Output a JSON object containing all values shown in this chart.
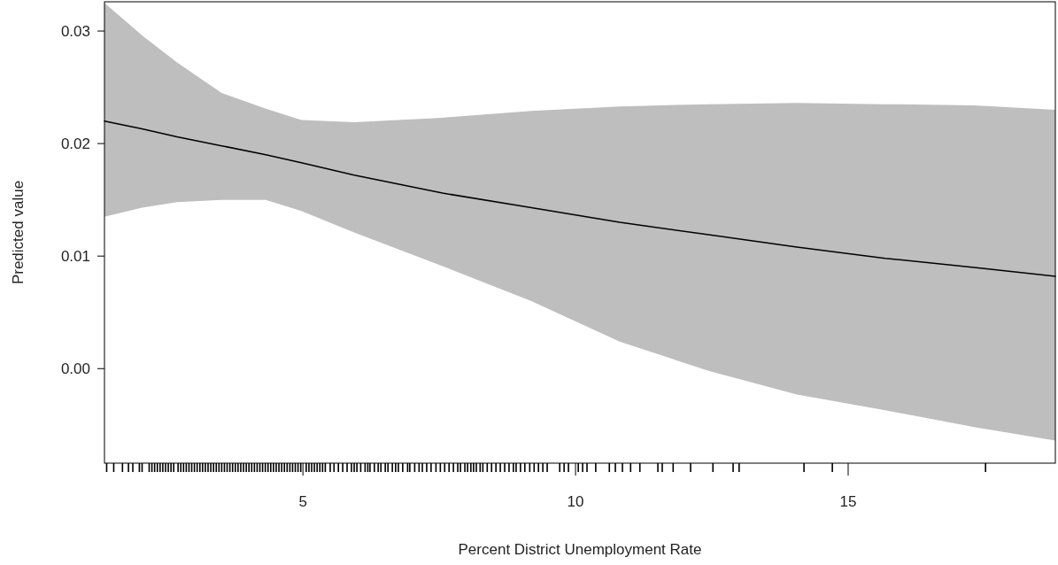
{
  "chart_data": {
    "type": "line",
    "xlabel": "Percent District Unemployment Rate",
    "ylabel": "Predicted value",
    "x": [
      1.36,
      2.05,
      2.69,
      3.51,
      4.32,
      4.97,
      5.94,
      7.56,
      9.19,
      10.81,
      12.44,
      14.06,
      15.68,
      17.31,
      18.8
    ],
    "series": [
      {
        "color": "#000000",
        "values": [
          0.022,
          0.0213,
          0.0206,
          0.0198,
          0.019,
          0.0183,
          0.0172,
          0.0156,
          0.0143,
          0.013,
          0.0119,
          0.0108,
          0.0098,
          0.009,
          0.0082
        ],
        "lower": [
          0.0135,
          0.0143,
          0.0148,
          0.015,
          0.015,
          0.014,
          0.0121,
          0.0091,
          0.006,
          0.0024,
          -0.0002,
          -0.0023,
          -0.0037,
          -0.0052,
          -0.0064
        ],
        "upper": [
          0.0325,
          0.0296,
          0.0272,
          0.0245,
          0.0231,
          0.0221,
          0.0219,
          0.0223,
          0.0229,
          0.0233,
          0.0235,
          0.0236,
          0.0235,
          0.0234,
          0.023
        ]
      }
    ],
    "xlim": [
      1.36,
      18.8
    ],
    "ylim": [
      -0.0084,
      0.0326
    ],
    "yticks": [
      {
        "value": 0,
        "label": "0.00"
      },
      {
        "value": 0.01,
        "label": "0.01"
      },
      {
        "value": 0.02,
        "label": "0.02"
      },
      {
        "value": 0.03,
        "label": "0.03"
      }
    ],
    "xticks": [
      5,
      10,
      15,
      {
        "value": 1.4,
        "label": null
      },
      {
        "value": 1.53,
        "label": null
      },
      {
        "value": 1.69,
        "label": null
      },
      {
        "value": 1.8,
        "label": null
      },
      {
        "value": 1.88,
        "label": null
      },
      {
        "value": 2.0,
        "label": null
      },
      {
        "value": 2.05,
        "label": null
      },
      {
        "value": 2.18,
        "label": null
      },
      {
        "value": 2.23,
        "label": null
      },
      {
        "value": 2.28,
        "label": null
      },
      {
        "value": 2.33,
        "label": null
      },
      {
        "value": 2.38,
        "label": null
      },
      {
        "value": 2.43,
        "label": null
      },
      {
        "value": 2.48,
        "label": null
      },
      {
        "value": 2.53,
        "label": null
      },
      {
        "value": 2.58,
        "label": null
      },
      {
        "value": 2.63,
        "label": null
      },
      {
        "value": 2.71,
        "label": null
      },
      {
        "value": 2.76,
        "label": null
      },
      {
        "value": 2.81,
        "label": null
      },
      {
        "value": 2.86,
        "label": null
      },
      {
        "value": 2.91,
        "label": null
      },
      {
        "value": 2.96,
        "label": null
      },
      {
        "value": 3.01,
        "label": null
      },
      {
        "value": 3.06,
        "label": null
      },
      {
        "value": 3.11,
        "label": null
      },
      {
        "value": 3.16,
        "label": null
      },
      {
        "value": 3.21,
        "label": null
      },
      {
        "value": 3.26,
        "label": null
      },
      {
        "value": 3.31,
        "label": null
      },
      {
        "value": 3.36,
        "label": null
      },
      {
        "value": 3.41,
        "label": null
      },
      {
        "value": 3.46,
        "label": null
      },
      {
        "value": 3.51,
        "label": null
      },
      {
        "value": 3.56,
        "label": null
      },
      {
        "value": 3.61,
        "label": null
      },
      {
        "value": 3.66,
        "label": null
      },
      {
        "value": 3.71,
        "label": null
      },
      {
        "value": 3.76,
        "label": null
      },
      {
        "value": 3.81,
        "label": null
      },
      {
        "value": 3.86,
        "label": null
      },
      {
        "value": 3.91,
        "label": null
      },
      {
        "value": 3.96,
        "label": null
      },
      {
        "value": 4.01,
        "label": null
      },
      {
        "value": 4.06,
        "label": null
      },
      {
        "value": 4.11,
        "label": null
      },
      {
        "value": 4.16,
        "label": null
      },
      {
        "value": 4.21,
        "label": null
      },
      {
        "value": 4.26,
        "label": null
      },
      {
        "value": 4.31,
        "label": null
      },
      {
        "value": 4.36,
        "label": null
      },
      {
        "value": 4.41,
        "label": null
      },
      {
        "value": 4.46,
        "label": null
      },
      {
        "value": 4.51,
        "label": null
      },
      {
        "value": 4.56,
        "label": null
      },
      {
        "value": 4.61,
        "label": null
      },
      {
        "value": 4.66,
        "label": null
      },
      {
        "value": 4.71,
        "label": null
      },
      {
        "value": 4.76,
        "label": null
      },
      {
        "value": 4.81,
        "label": null
      },
      {
        "value": 4.86,
        "label": null
      },
      {
        "value": 4.91,
        "label": null
      },
      {
        "value": 4.96,
        "label": null
      },
      {
        "value": 5.06,
        "label": null
      },
      {
        "value": 5.11,
        "label": null
      },
      {
        "value": 5.16,
        "label": null
      },
      {
        "value": 5.21,
        "label": null
      },
      {
        "value": 5.26,
        "label": null
      },
      {
        "value": 5.31,
        "label": null
      },
      {
        "value": 5.36,
        "label": null
      },
      {
        "value": 5.41,
        "label": null
      },
      {
        "value": 5.5,
        "label": null
      },
      {
        "value": 5.57,
        "label": null
      },
      {
        "value": 5.65,
        "label": null
      },
      {
        "value": 5.73,
        "label": null
      },
      {
        "value": 5.81,
        "label": null
      },
      {
        "value": 5.89,
        "label": null
      },
      {
        "value": 5.94,
        "label": null
      },
      {
        "value": 5.99,
        "label": null
      },
      {
        "value": 6.06,
        "label": null
      },
      {
        "value": 6.14,
        "label": null
      },
      {
        "value": 6.19,
        "label": null
      },
      {
        "value": 6.23,
        "label": null
      },
      {
        "value": 6.31,
        "label": null
      },
      {
        "value": 6.38,
        "label": null
      },
      {
        "value": 6.43,
        "label": null
      },
      {
        "value": 6.51,
        "label": null
      },
      {
        "value": 6.56,
        "label": null
      },
      {
        "value": 6.64,
        "label": null
      },
      {
        "value": 6.7,
        "label": null
      },
      {
        "value": 6.75,
        "label": null
      },
      {
        "value": 6.83,
        "label": null
      },
      {
        "value": 6.92,
        "label": null
      },
      {
        "value": 6.96,
        "label": null
      },
      {
        "value": 7.05,
        "label": null
      },
      {
        "value": 7.13,
        "label": null
      },
      {
        "value": 7.19,
        "label": null
      },
      {
        "value": 7.27,
        "label": null
      },
      {
        "value": 7.35,
        "label": null
      },
      {
        "value": 7.44,
        "label": null
      },
      {
        "value": 7.52,
        "label": null
      },
      {
        "value": 7.6,
        "label": null
      },
      {
        "value": 7.68,
        "label": null
      },
      {
        "value": 7.76,
        "label": null
      },
      {
        "value": 7.84,
        "label": null
      },
      {
        "value": 7.89,
        "label": null
      },
      {
        "value": 7.97,
        "label": null
      },
      {
        "value": 8.02,
        "label": null
      },
      {
        "value": 8.08,
        "label": null
      },
      {
        "value": 8.13,
        "label": null
      },
      {
        "value": 8.18,
        "label": null
      },
      {
        "value": 8.25,
        "label": null
      },
      {
        "value": 8.3,
        "label": null
      },
      {
        "value": 8.38,
        "label": null
      },
      {
        "value": 8.46,
        "label": null
      },
      {
        "value": 8.54,
        "label": null
      },
      {
        "value": 8.62,
        "label": null
      },
      {
        "value": 8.7,
        "label": null
      },
      {
        "value": 8.78,
        "label": null
      },
      {
        "value": 8.86,
        "label": null
      },
      {
        "value": 8.91,
        "label": null
      },
      {
        "value": 8.99,
        "label": null
      },
      {
        "value": 9.07,
        "label": null
      },
      {
        "value": 9.16,
        "label": null
      },
      {
        "value": 9.24,
        "label": null
      },
      {
        "value": 9.32,
        "label": null
      },
      {
        "value": 9.4,
        "label": null
      },
      {
        "value": 9.48,
        "label": null
      },
      {
        "value": 9.71,
        "label": null
      },
      {
        "value": 9.79,
        "label": null
      },
      {
        "value": 9.87,
        "label": null
      },
      {
        "value": 10.05,
        "label": null
      },
      {
        "value": 10.13,
        "label": null
      },
      {
        "value": 10.21,
        "label": null
      },
      {
        "value": 10.37,
        "label": null
      },
      {
        "value": 10.62,
        "label": null
      },
      {
        "value": 10.73,
        "label": null
      },
      {
        "value": 10.86,
        "label": null
      },
      {
        "value": 11.01,
        "label": null
      },
      {
        "value": 11.18,
        "label": null
      },
      {
        "value": 11.51,
        "label": null
      },
      {
        "value": 11.59,
        "label": null
      },
      {
        "value": 11.79,
        "label": null
      },
      {
        "value": 12.11,
        "label": null
      },
      {
        "value": 12.52,
        "label": null
      },
      {
        "value": 12.89,
        "label": null
      },
      {
        "value": 13.0,
        "label": null
      },
      {
        "value": 14.19,
        "label": null
      },
      {
        "value": 14.71,
        "label": null
      },
      {
        "value": 17.52,
        "label": null
      }
    ],
    "grid": false,
    "marker": "none",
    "line_style": "solid"
  }
}
